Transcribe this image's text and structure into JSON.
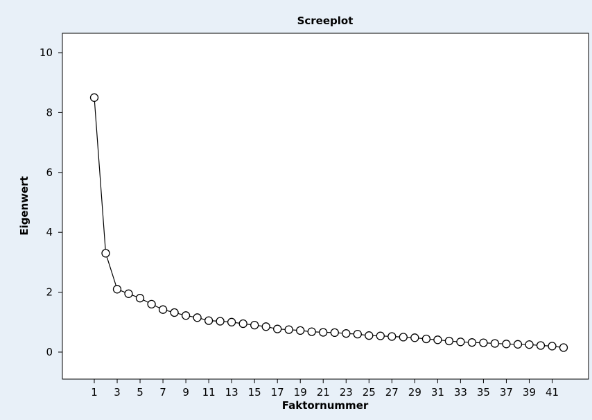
{
  "colors": {
    "background": "#e8f0f8",
    "plot_background": "#ffffff",
    "line": "#000000"
  },
  "chart_data": {
    "type": "line",
    "title": "Screeplot",
    "xlabel": "Faktornummer",
    "ylabel": "Eigenwert",
    "xlim": [
      1,
      42
    ],
    "ylim": [
      0,
      10
    ],
    "x_ticks": [
      1,
      3,
      5,
      7,
      9,
      11,
      13,
      15,
      17,
      19,
      21,
      23,
      25,
      27,
      29,
      31,
      33,
      35,
      37,
      39,
      41
    ],
    "y_ticks": [
      0,
      2,
      4,
      6,
      8,
      10
    ],
    "marker": "open-circle",
    "grid": false,
    "series": [
      {
        "x": [
          1,
          2,
          3,
          4,
          5,
          6,
          7,
          8,
          9,
          10,
          11,
          12,
          13,
          14,
          15,
          16,
          17,
          18,
          19,
          20,
          21,
          22,
          23,
          24,
          25,
          26,
          27,
          28,
          29,
          30,
          31,
          32,
          33,
          34,
          35,
          36,
          37,
          38,
          39,
          40,
          41,
          42
        ],
        "values": [
          8.5,
          3.3,
          2.1,
          1.95,
          1.8,
          1.6,
          1.42,
          1.32,
          1.22,
          1.15,
          1.05,
          1.03,
          1.0,
          0.95,
          0.9,
          0.85,
          0.77,
          0.75,
          0.72,
          0.68,
          0.66,
          0.65,
          0.62,
          0.6,
          0.55,
          0.54,
          0.52,
          0.5,
          0.48,
          0.44,
          0.41,
          0.37,
          0.34,
          0.32,
          0.31,
          0.29,
          0.27,
          0.26,
          0.25,
          0.22,
          0.2,
          0.15
        ]
      }
    ]
  }
}
